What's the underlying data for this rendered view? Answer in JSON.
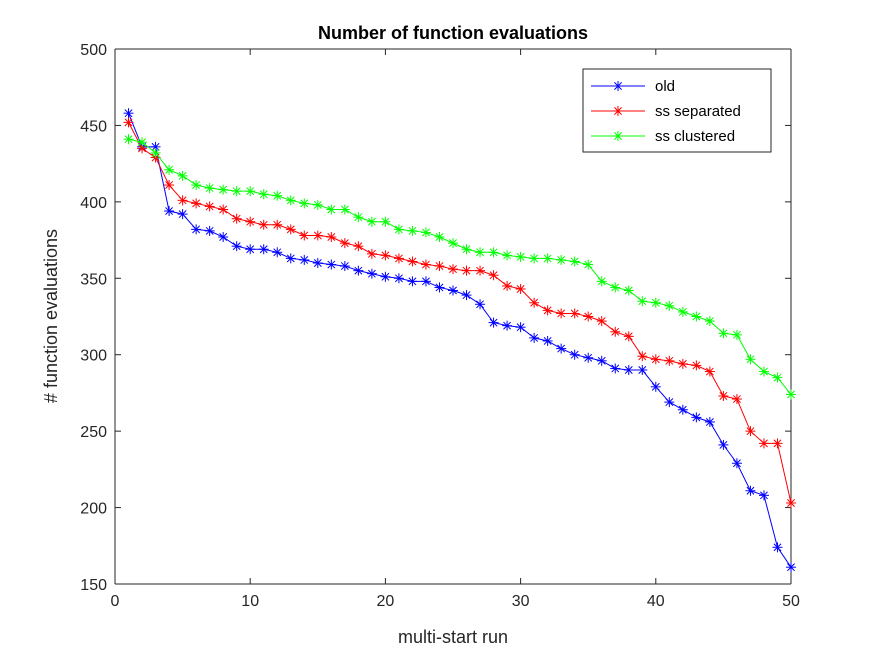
{
  "chart_data": {
    "type": "line",
    "title": "Number of function evaluations",
    "xlabel": "multi-start run",
    "ylabel": "# function evaluations",
    "xlim": [
      0,
      50
    ],
    "ylim": [
      150,
      500
    ],
    "xticks": [
      "0",
      "10",
      "20",
      "30",
      "40",
      "50"
    ],
    "yticks": [
      "150",
      "200",
      "250",
      "300",
      "350",
      "400",
      "450",
      "500"
    ],
    "grid": false,
    "legend_position": "top-right",
    "marker": "asterisk",
    "x": [
      1,
      2,
      3,
      4,
      5,
      6,
      7,
      8,
      9,
      10,
      11,
      12,
      13,
      14,
      15,
      16,
      17,
      18,
      19,
      20,
      21,
      22,
      23,
      24,
      25,
      26,
      27,
      28,
      29,
      30,
      31,
      32,
      33,
      34,
      35,
      36,
      37,
      38,
      39,
      40,
      41,
      42,
      43,
      44,
      45,
      46,
      47,
      48,
      49,
      50
    ],
    "series": [
      {
        "name": "old",
        "color": "#0000ff",
        "values": [
          458,
          436,
          436,
          394,
          392,
          382,
          381,
          377,
          371,
          369,
          369,
          367,
          363,
          362,
          360,
          359,
          358,
          355,
          353,
          351,
          350,
          348,
          348,
          344,
          342,
          339,
          333,
          321,
          319,
          318,
          311,
          309,
          304,
          300,
          298,
          296,
          291,
          290,
          290,
          279,
          269,
          264,
          259,
          256,
          241,
          229,
          211,
          208,
          174,
          161
        ]
      },
      {
        "name": "ss separated",
        "color": "#ff0000",
        "values": [
          452,
          435,
          429,
          411,
          401,
          399,
          397,
          395,
          389,
          387,
          385,
          385,
          382,
          378,
          378,
          377,
          373,
          371,
          366,
          365,
          363,
          361,
          359,
          358,
          356,
          355,
          355,
          352,
          345,
          343,
          334,
          329,
          327,
          327,
          325,
          322,
          315,
          312,
          299,
          297,
          296,
          294,
          293,
          289,
          273,
          271,
          250,
          242,
          242,
          203
        ]
      },
      {
        "name": "ss clustered",
        "color": "#00ff00",
        "values": [
          441,
          439,
          432,
          421,
          417,
          411,
          409,
          408,
          407,
          407,
          405,
          404,
          401,
          399,
          398,
          395,
          395,
          390,
          387,
          387,
          382,
          381,
          380,
          377,
          373,
          369,
          367,
          367,
          365,
          364,
          363,
          363,
          362,
          361,
          359,
          348,
          344,
          342,
          335,
          334,
          332,
          328,
          325,
          322,
          314,
          313,
          297,
          289,
          285,
          274
        ]
      }
    ]
  }
}
